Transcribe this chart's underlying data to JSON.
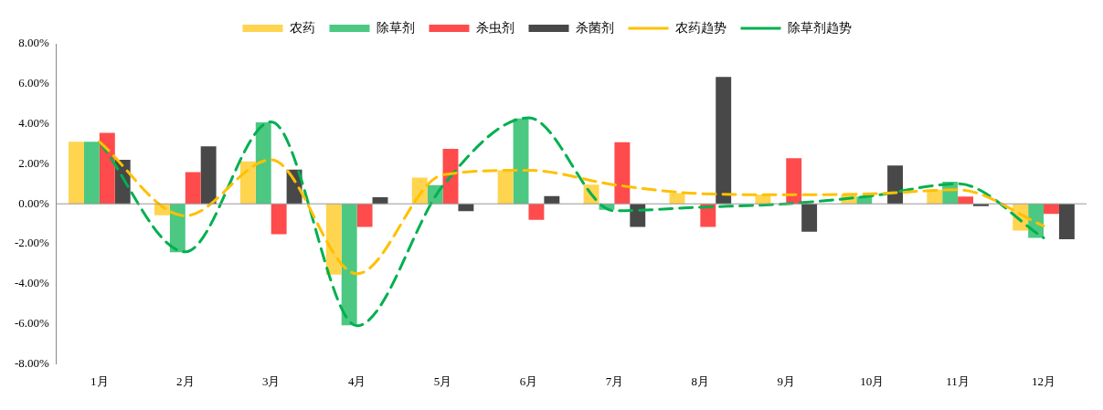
{
  "chart_data": {
    "type": "bar",
    "categories": [
      "1月",
      "2月",
      "3月",
      "4月",
      "5月",
      "6月",
      "7月",
      "8月",
      "9月",
      "10月",
      "11月",
      "12月"
    ],
    "series": [
      {
        "name": "农药",
        "color": "#ffd44f",
        "values": [
          3.1,
          -0.57,
          2.12,
          -3.54,
          1.31,
          1.68,
          0.96,
          0.53,
          0.45,
          0.48,
          0.71,
          -1.34
        ]
      },
      {
        "name": "除草剂",
        "color": "#4cc882",
        "values": [
          3.1,
          -2.42,
          4.07,
          -6.08,
          0.93,
          4.27,
          -0.3,
          null,
          null,
          0.36,
          1.11,
          -1.7
        ]
      },
      {
        "name": "杀虫剂",
        "color": "#ff4b4b",
        "values": [
          3.55,
          1.58,
          -1.52,
          -1.16,
          2.75,
          -0.8,
          3.08,
          -1.16,
          2.28,
          0,
          0.36,
          -0.5
        ]
      },
      {
        "name": "杀菌剂",
        "color": "#484848",
        "values": [
          2.2,
          2.87,
          1.71,
          0.33,
          -0.37,
          0.39,
          -1.16,
          6.34,
          -1.4,
          1.91,
          -0.12,
          -1.77
        ]
      },
      {
        "name": "农药趋势",
        "type": "line",
        "line_style": "dashed",
        "color": "#ffc000",
        "values": [
          3.1,
          -0.6,
          2.2,
          -3.5,
          1.45,
          1.68,
          0.95,
          0.51,
          0.45,
          0.5,
          0.7,
          -1.1
        ]
      },
      {
        "name": "除草剂趋势",
        "type": "line",
        "line_style": "dashed",
        "color": "#00b050",
        "values": [
          3.1,
          -2.4,
          4.1,
          -6.1,
          0.9,
          4.3,
          -0.35,
          -0.17,
          0,
          0.4,
          1.0,
          -1.7
        ]
      }
    ],
    "ylim": [
      -8,
      8
    ],
    "yticks": [
      {
        "value": -8,
        "label": "-8.00%"
      },
      {
        "value": -6,
        "label": "-6.00%"
      },
      {
        "value": -4,
        "label": "-4.00%"
      },
      {
        "value": -2,
        "label": "-2.00%"
      },
      {
        "value": 0,
        "label": "0.00%"
      },
      {
        "value": 2,
        "label": "2.00%"
      },
      {
        "value": 4,
        "label": "4.00%"
      },
      {
        "value": 6,
        "label": "6.00%"
      },
      {
        "value": 8,
        "label": "8.00%"
      }
    ],
    "ref_lines": [
      {
        "axis": "y",
        "value": 0,
        "color": "#999999"
      }
    ],
    "grid": false,
    "legend": "top",
    "marker": "none"
  }
}
